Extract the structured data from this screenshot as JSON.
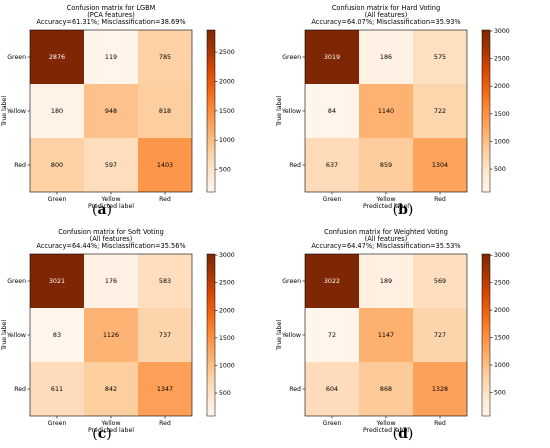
{
  "colorscale": [
    "#fff5eb",
    "#fee6ce",
    "#fdd0a2",
    "#fdae6b",
    "#fd8d3c",
    "#f16913",
    "#d94801",
    "#a63603",
    "#7f2704"
  ],
  "chart_data": [
    {
      "type": "heatmap",
      "title": [
        "Confusion matrix for LGBM",
        "(PCA features)",
        "Accuracy=61.31%; Misclassification=38.69%"
      ],
      "xlabel": "Predicted label",
      "ylabel": "True label",
      "categories": [
        "Green",
        "Yellow",
        "Red"
      ],
      "matrix": [
        [
          2876,
          119,
          785
        ],
        [
          180,
          948,
          818
        ],
        [
          800,
          597,
          1403
        ]
      ],
      "vmin": 119,
      "vmax": 2876,
      "colorbar_ticks": [
        500,
        1000,
        1500,
        2000,
        2500
      ],
      "caption": "a"
    },
    {
      "type": "heatmap",
      "title": [
        "Confusion matrix for Hard Voting",
        "(All features)",
        "Accuracy=64.07%; Misclassification=35.93%"
      ],
      "xlabel": "Predicted label",
      "ylabel": "True label",
      "categories": [
        "Green",
        "Yellow",
        "Red"
      ],
      "matrix": [
        [
          3019,
          186,
          575
        ],
        [
          84,
          1140,
          722
        ],
        [
          637,
          859,
          1304
        ]
      ],
      "vmin": 84,
      "vmax": 3019,
      "colorbar_ticks": [
        500,
        1000,
        1500,
        2000,
        2500,
        3000
      ],
      "caption": "b"
    },
    {
      "type": "heatmap",
      "title": [
        "Confusion matrix for Soft Voting",
        "(All features)",
        "Accuracy=64.44%; Misclassification=35.56%"
      ],
      "xlabel": "Predicted label",
      "ylabel": "True label",
      "categories": [
        "Green",
        "Yellow",
        "Red"
      ],
      "matrix": [
        [
          3021,
          176,
          583
        ],
        [
          83,
          1126,
          737
        ],
        [
          611,
          842,
          1347
        ]
      ],
      "vmin": 83,
      "vmax": 3021,
      "colorbar_ticks": [
        500,
        1000,
        1500,
        2000,
        2500,
        3000
      ],
      "caption": "c"
    },
    {
      "type": "heatmap",
      "title": [
        "Confusion matrix for Weighted Voting",
        "(All features)",
        "Accuracy=64.47%; Misclassification=35.53%"
      ],
      "xlabel": "Predicted label",
      "ylabel": "True label",
      "categories": [
        "Green",
        "Yellow",
        "Red"
      ],
      "matrix": [
        [
          3022,
          189,
          569
        ],
        [
          72,
          1147,
          727
        ],
        [
          604,
          868,
          1328
        ]
      ],
      "vmin": 72,
      "vmax": 3022,
      "colorbar_ticks": [
        500,
        1000,
        1500,
        2000,
        2500,
        3000
      ],
      "caption": "d"
    }
  ]
}
